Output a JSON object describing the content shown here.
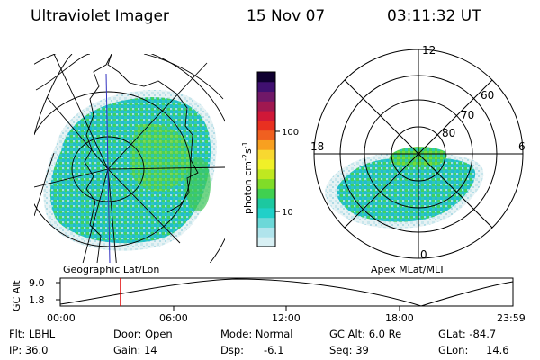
{
  "header": {
    "title": "Ultraviolet Imager",
    "date": "15 Nov 07",
    "time": "03:11:32 UT"
  },
  "left_panel": {
    "caption": "Geographic Lat/Lon"
  },
  "right_panel": {
    "caption": "Apex MLat/MLT",
    "mlt_labels": [
      "12",
      "18",
      "6",
      "0"
    ],
    "mlat_labels": [
      "60",
      "70",
      "80"
    ]
  },
  "colorbar": {
    "title": "photon cm",
    "superscript1": "-2",
    "middle": "s",
    "superscript2": "-1",
    "ticks": [
      "100",
      "10"
    ],
    "colors": [
      "#d8f0f4",
      "#b0e4ec",
      "#6cd8d8",
      "#20d0c8",
      "#1cc8a0",
      "#40d050",
      "#80dc28",
      "#c0e820",
      "#f0f028",
      "#f8d830",
      "#f8a020",
      "#f06020",
      "#e83020",
      "#d01838",
      "#a01850",
      "#701868",
      "#401070",
      "#100030"
    ]
  },
  "alt_plot": {
    "ylabel": "GC Alt",
    "yticks": [
      "9.0",
      "1.8"
    ],
    "xticks": [
      "00:00",
      "06:00",
      "12:00",
      "18:00",
      "23:59"
    ],
    "current_time_hours": 3.19
  },
  "info": {
    "row1": [
      "Flt: LBHL",
      "Door: Open",
      "Mode: Normal",
      "GC Alt: 6.0 Re",
      "GLat: -84.7"
    ],
    "row2": [
      "IP: 36.0",
      "Gain: 14",
      "Dsp:",
      "-6.1",
      "Seq: 39",
      "GLon:",
      "14.6"
    ]
  },
  "colors": {
    "current_time_marker": "#e00000",
    "aurora_low": "#1cc8b0",
    "aurora_mid": "#40d050",
    "aurora_high": "#80dc28"
  }
}
